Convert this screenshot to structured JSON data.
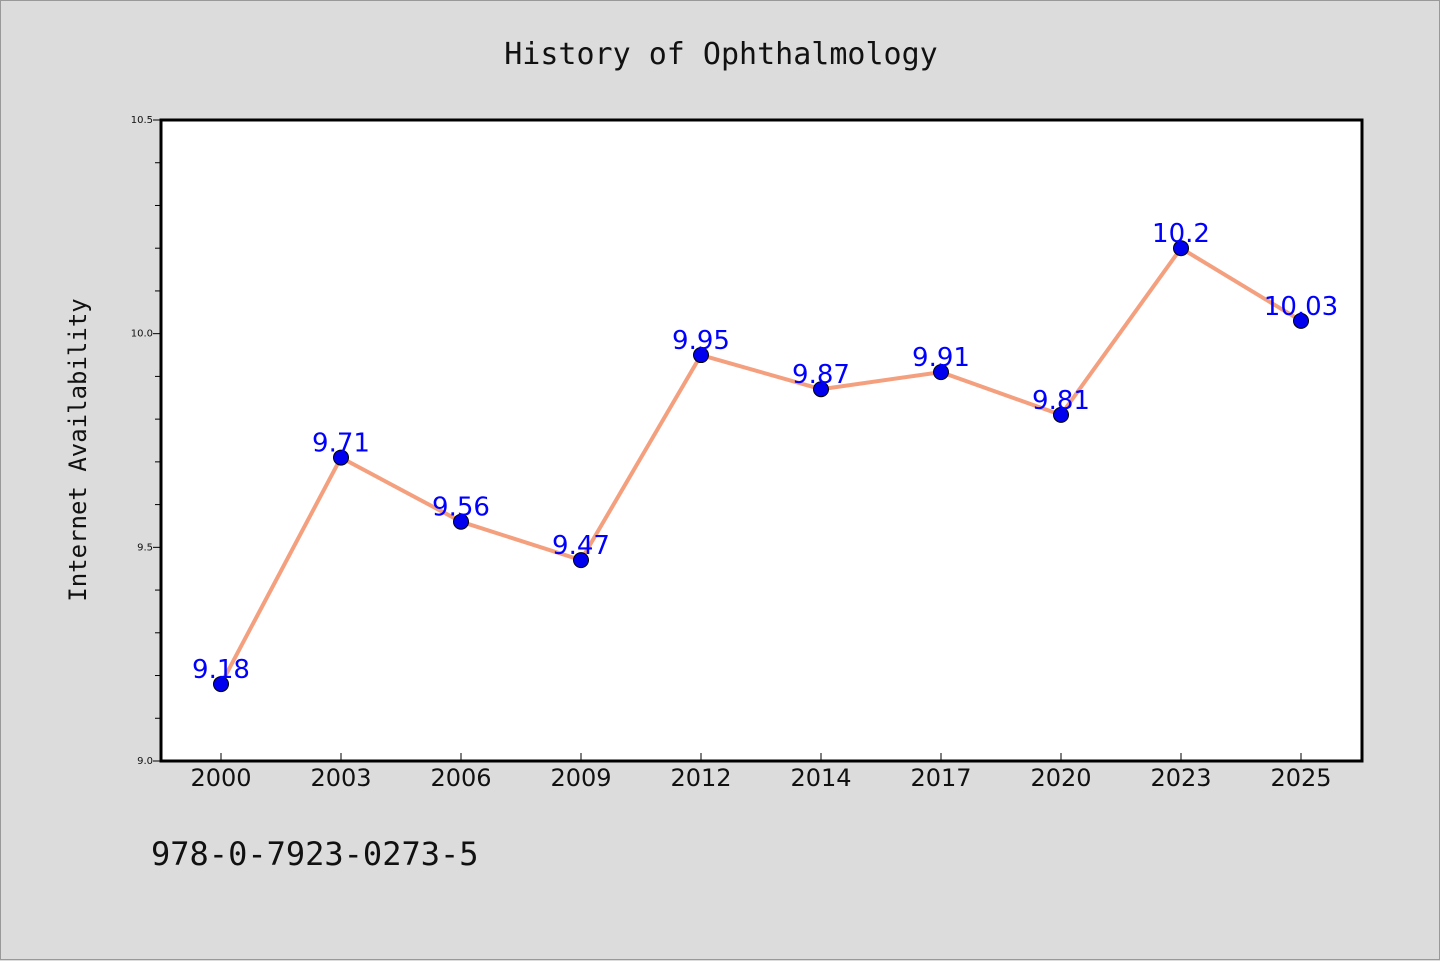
{
  "chart_data": {
    "type": "line",
    "title": "History of Ophthalmology",
    "xlabel": "",
    "ylabel": "Internet Availability",
    "categories": [
      "2000",
      "2003",
      "2006",
      "2009",
      "2012",
      "2014",
      "2017",
      "2020",
      "2023",
      "2025"
    ],
    "series": [
      {
        "values": [
          9.18,
          9.71,
          9.56,
          9.47,
          9.95,
          9.87,
          9.91,
          9.81,
          10.2,
          10.03
        ],
        "data_labels": [
          "9.18",
          "9.71",
          "9.56",
          "9.47",
          "9.95",
          "9.87",
          "9.91",
          "9.81",
          "10.2",
          "10.03"
        ]
      }
    ],
    "ylim": [
      9.0,
      10.5
    ],
    "yticks": [
      "9.0",
      "9.5",
      "10.0",
      "10.5"
    ],
    "grid": false,
    "line_color": "#f4a07f",
    "marker_color": "#0000ee",
    "label_color": "#0000ff"
  },
  "footnote": "978-0-7923-0273-5"
}
